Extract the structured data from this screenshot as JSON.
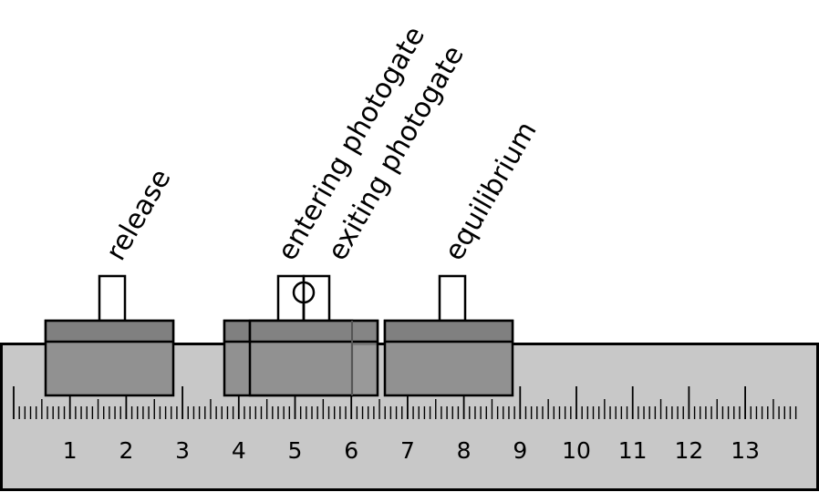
{
  "labels": {
    "release": "release",
    "entering": "entering photogate",
    "exiting": "exiting photogate",
    "equilibrium": "equilibrium"
  },
  "ruler": {
    "numbers": [
      "1",
      "2",
      "3",
      "4",
      "5",
      "6",
      "7",
      "8",
      "9",
      "10",
      "11",
      "12",
      "13"
    ],
    "subdivisions_per_unit": 10
  },
  "colors": {
    "ruler_fill": "#c8c8c8",
    "cart_fill": "#919191",
    "cart_top_fill": "#808080",
    "stroke": "#000000"
  }
}
